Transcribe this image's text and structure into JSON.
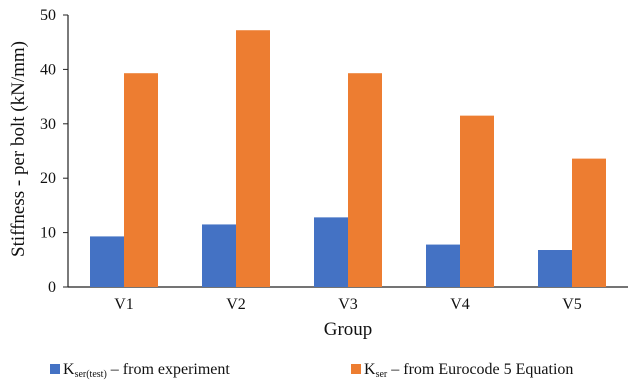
{
  "chart_data": {
    "type": "bar",
    "categories": [
      "V1",
      "V2",
      "V3",
      "V4",
      "V5"
    ],
    "series": [
      {
        "name": "K_ser(test) – from experiment",
        "legend": {
          "main": "K",
          "sub": "ser(test)",
          "rest": " – from experiment"
        },
        "color": "#4472C4",
        "values": [
          9.3,
          11.5,
          12.8,
          7.8,
          6.8
        ]
      },
      {
        "name": "K_ser – from Eurocode 5 Equation",
        "legend": {
          "main": "K",
          "sub": "ser",
          "rest": " – from Eurocode 5 Equation"
        },
        "color": "#ED7D31",
        "values": [
          39.3,
          47.2,
          39.3,
          31.5,
          23.6
        ]
      }
    ],
    "xlabel": "Group",
    "ylabel": "Stiffness - per bolt  (kN/mm)",
    "ylim": [
      0,
      50
    ],
    "yticks": [
      0,
      10,
      20,
      30,
      40,
      50
    ],
    "grid": false,
    "legend_position": "bottom"
  }
}
